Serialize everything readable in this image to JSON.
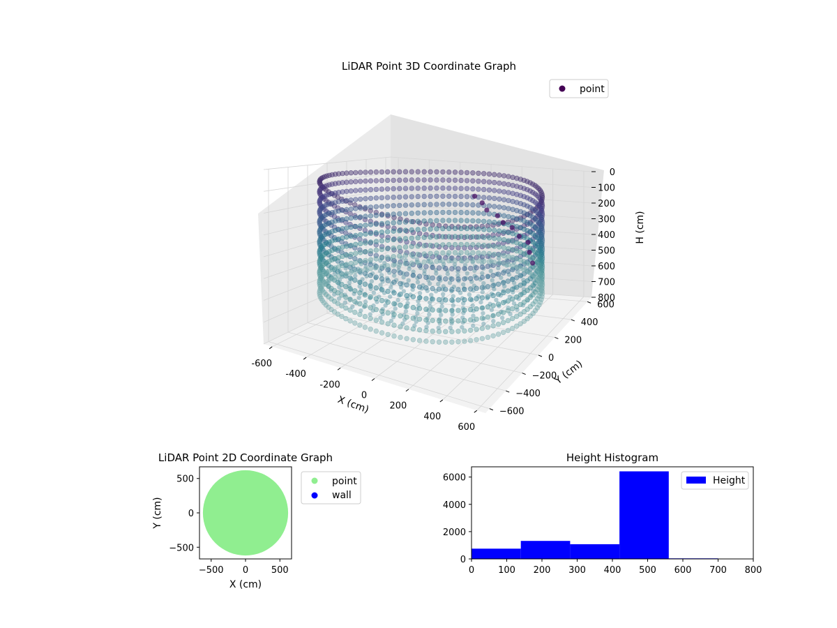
{
  "chart_data": [
    {
      "type": "scatter",
      "projection": "3d",
      "title": "LiDAR Point 3D Coordinate Graph",
      "xlabel": "X (cm)",
      "ylabel": "Y (cm)",
      "zlabel": "H (cm)",
      "x_ticks": [
        -600,
        -400,
        -200,
        0,
        200,
        400,
        600
      ],
      "y_ticks": [
        -600,
        -400,
        -200,
        0,
        200,
        400,
        600
      ],
      "z_ticks": [
        0,
        100,
        200,
        300,
        400,
        500,
        600,
        700,
        800
      ],
      "xlim": [
        -650,
        650
      ],
      "ylim": [
        -650,
        650
      ],
      "zlim": [
        0,
        800
      ],
      "z_inverted": true,
      "colormap": "viridis",
      "legend": {
        "location": "upper right",
        "entries": [
          "point"
        ]
      },
      "series": [
        {
          "name": "point",
          "legend_color": "#440154",
          "description_points": {
            "wall_radius_cm": 600,
            "wall_heights_cm": [
              50,
              100,
              150,
              200,
              250,
              300,
              350,
              400,
              450,
              500,
              550,
              600
            ],
            "floor_height_cm": 550
          }
        }
      ],
      "grid": true
    },
    {
      "type": "scatter",
      "title": "LiDAR Point 2D Coordinate Graph",
      "xlabel": "X (cm)",
      "ylabel": "Y (cm)",
      "x_ticks": [
        -500,
        0,
        500
      ],
      "y_ticks": [
        -500,
        0,
        500
      ],
      "xlim": [
        -670,
        670
      ],
      "ylim": [
        -670,
        670
      ],
      "legend": {
        "location": "outside right",
        "entries": [
          "point",
          "wall"
        ]
      },
      "series": [
        {
          "name": "point",
          "color": "#90ee90",
          "shape": "filled disc",
          "radius_cm": 620,
          "center": [
            0,
            0
          ]
        },
        {
          "name": "wall",
          "color": "#0000ff",
          "points": []
        }
      ],
      "grid": false
    },
    {
      "type": "bar",
      "subtype": "histogram",
      "title": "Height Histogram",
      "xlabel": "",
      "ylabel": "",
      "bin_edges": [
        0,
        140,
        280,
        420,
        560,
        700
      ],
      "values": [
        750,
        1320,
        1080,
        6420,
        40
      ],
      "x_ticks": [
        0,
        100,
        200,
        300,
        400,
        500,
        600,
        700,
        800
      ],
      "y_ticks": [
        0,
        2000,
        4000,
        6000
      ],
      "xlim": [
        0,
        800
      ],
      "ylim": [
        0,
        6750
      ],
      "color": "#0000ff",
      "legend": {
        "location": "upper right",
        "entries": [
          "Height"
        ]
      },
      "series": [
        {
          "name": "Height",
          "values": [
            750,
            1320,
            1080,
            6420,
            40
          ]
        }
      ],
      "grid": false
    }
  ]
}
